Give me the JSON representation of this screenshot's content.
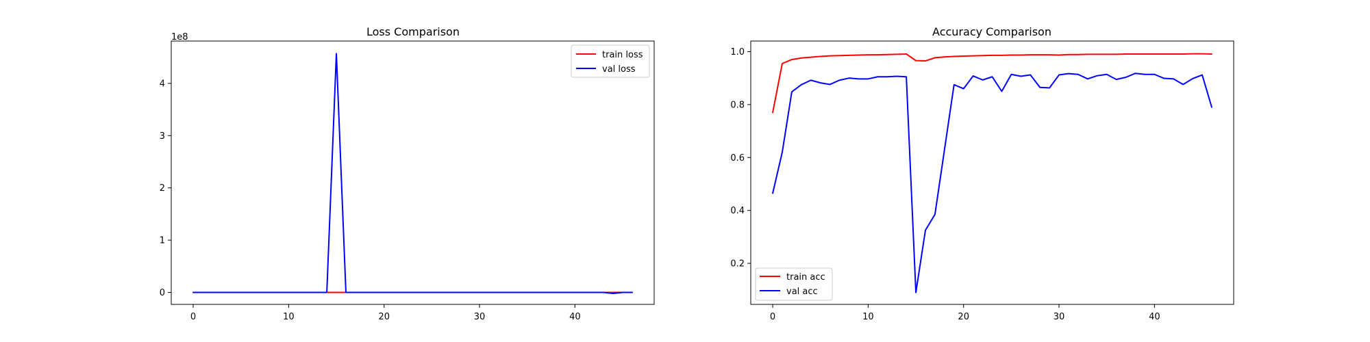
{
  "chart_data": [
    {
      "type": "line",
      "title": "Loss Comparison",
      "xlabel": "",
      "ylabel": "",
      "y_offset_label": "1e8",
      "xlim": [
        -2.3,
        48.3
      ],
      "ylim": [
        -0.229,
        4.81
      ],
      "y_scale_note": "y values in units of 1e8",
      "xticks": [
        0,
        10,
        20,
        30,
        40
      ],
      "yticks": [
        0,
        1,
        2,
        3,
        4
      ],
      "legend": "upper right",
      "grid": false,
      "x": [
        0,
        1,
        2,
        3,
        4,
        5,
        6,
        7,
        8,
        9,
        10,
        11,
        12,
        13,
        14,
        15,
        16,
        17,
        18,
        19,
        20,
        21,
        22,
        23,
        24,
        25,
        26,
        27,
        28,
        29,
        30,
        31,
        32,
        33,
        34,
        35,
        36,
        37,
        38,
        39,
        40,
        41,
        42,
        43,
        44,
        45,
        46
      ],
      "series": [
        {
          "name": "train loss",
          "color": "#ff0000",
          "values": [
            0,
            0,
            0,
            0,
            0,
            0,
            0,
            0,
            0,
            0,
            0,
            0,
            0,
            0,
            0,
            0,
            0,
            0,
            0,
            0,
            0,
            0,
            0,
            0,
            0,
            0,
            0,
            0,
            0,
            0,
            0,
            0,
            0,
            0,
            0,
            0,
            0,
            0,
            0,
            0,
            0,
            0,
            0,
            0,
            0,
            0,
            0
          ]
        },
        {
          "name": "val loss",
          "color": "#0000ff",
          "values": [
            0,
            0,
            0,
            0,
            0,
            0,
            0,
            0,
            0,
            0,
            0,
            0,
            0,
            0,
            0,
            4.57,
            0,
            0,
            0,
            0,
            0,
            0,
            0,
            0,
            0,
            0,
            0,
            0,
            0,
            0,
            0,
            0,
            0,
            0,
            0,
            0,
            0,
            0,
            0,
            0,
            0,
            0,
            0,
            0,
            -0.02,
            0,
            0
          ]
        }
      ]
    },
    {
      "type": "line",
      "title": "Accuracy Comparison",
      "xlabel": "",
      "ylabel": "",
      "xlim": [
        -2.3,
        48.3
      ],
      "ylim": [
        0.045,
        1.04
      ],
      "xticks": [
        0,
        10,
        20,
        30,
        40
      ],
      "yticks": [
        0.2,
        0.4,
        0.6,
        0.8,
        1.0
      ],
      "ytick_labels": [
        "0.2",
        "0.4",
        "0.6",
        "0.8",
        "1.0"
      ],
      "legend": "lower left",
      "grid": false,
      "x": [
        0,
        1,
        2,
        3,
        4,
        5,
        6,
        7,
        8,
        9,
        10,
        11,
        12,
        13,
        14,
        15,
        16,
        17,
        18,
        19,
        20,
        21,
        22,
        23,
        24,
        25,
        26,
        27,
        28,
        29,
        30,
        31,
        32,
        33,
        34,
        35,
        36,
        37,
        38,
        39,
        40,
        41,
        42,
        43,
        44,
        45,
        46
      ],
      "series": [
        {
          "name": "train acc",
          "color": "#ff0000",
          "values": [
            0.77,
            0.955,
            0.97,
            0.976,
            0.979,
            0.982,
            0.984,
            0.985,
            0.986,
            0.987,
            0.988,
            0.988,
            0.989,
            0.99,
            0.991,
            0.966,
            0.965,
            0.977,
            0.98,
            0.982,
            0.983,
            0.984,
            0.985,
            0.986,
            0.986,
            0.987,
            0.987,
            0.988,
            0.988,
            0.988,
            0.987,
            0.989,
            0.989,
            0.99,
            0.99,
            0.99,
            0.99,
            0.991,
            0.991,
            0.991,
            0.991,
            0.991,
            0.991,
            0.991,
            0.992,
            0.992,
            0.991
          ]
        },
        {
          "name": "val acc",
          "color": "#0000ff",
          "values": [
            0.465,
            0.62,
            0.848,
            0.875,
            0.892,
            0.882,
            0.876,
            0.892,
            0.9,
            0.897,
            0.897,
            0.905,
            0.905,
            0.907,
            0.905,
            0.09,
            0.325,
            0.385,
            0.63,
            0.875,
            0.86,
            0.908,
            0.893,
            0.905,
            0.85,
            0.914,
            0.907,
            0.912,
            0.865,
            0.863,
            0.912,
            0.917,
            0.914,
            0.897,
            0.909,
            0.914,
            0.895,
            0.903,
            0.918,
            0.914,
            0.914,
            0.899,
            0.897,
            0.876,
            0.898,
            0.912,
            0.79
          ]
        }
      ]
    }
  ]
}
